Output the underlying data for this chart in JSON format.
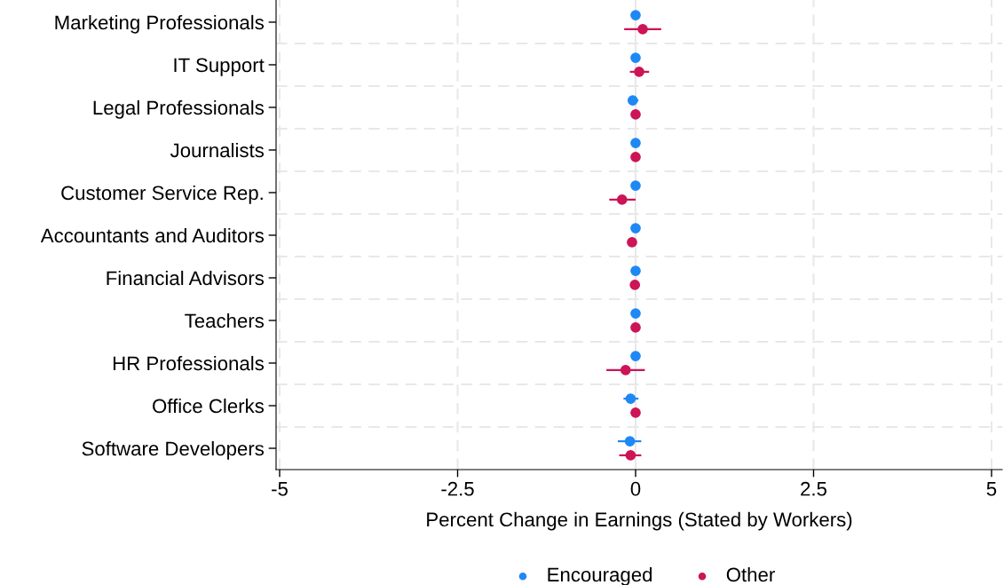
{
  "chart_data": {
    "type": "scatter",
    "orientation": "horizontal",
    "xlabel": "Percent Change in Earnings (Stated by Workers)",
    "categories": [
      "Marketing Professionals",
      "IT Support",
      "Legal Professionals",
      "Journalists",
      "Customer Service Rep.",
      "Accountants and Auditors",
      "Financial Advisors",
      "Teachers",
      "HR Professionals",
      "Office Clerks",
      "Software Developers"
    ],
    "series": [
      {
        "name": "Encouraged",
        "color": "#1e88f5",
        "values": [
          0,
          0,
          -0.04,
          0,
          0,
          0,
          0,
          0,
          0,
          -0.07,
          -0.08
        ],
        "errors": [
          null,
          null,
          [
            -0.11,
            0.04
          ],
          null,
          null,
          null,
          null,
          null,
          null,
          [
            -0.17,
            0.04
          ],
          [
            -0.25,
            0.08
          ]
        ]
      },
      {
        "name": "Other",
        "color": "#cc1456",
        "values": [
          0.1,
          0.05,
          0,
          0,
          -0.19,
          -0.05,
          -0.01,
          0,
          -0.14,
          0,
          -0.07
        ],
        "errors": [
          [
            -0.16,
            0.36
          ],
          [
            -0.08,
            0.19
          ],
          null,
          null,
          [
            -0.37,
            0
          ],
          null,
          null,
          null,
          [
            -0.41,
            0.13
          ],
          null,
          [
            -0.23,
            0.08
          ]
        ]
      }
    ],
    "xlim": [
      -5.05,
      5.15
    ],
    "xticks": [
      -5,
      -2.5,
      0,
      2.5,
      5
    ],
    "grid": true,
    "legend": "bottom",
    "marker": "circle"
  }
}
